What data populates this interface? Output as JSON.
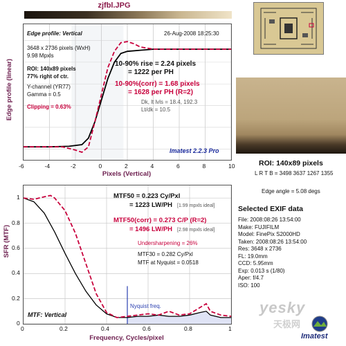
{
  "title": "zjfbl.JPG",
  "edge_panel": {
    "heading": "Edge profile: Vertical",
    "date": "26-Aug-2008 18:25:30",
    "dims": "3648 x 2736 pixels (WxH)",
    "mpxls": "9.98 Mpxls",
    "roi": "ROI: 140x89 pixels",
    "roi_pos": "77% right of ctr.",
    "channel": "Y-channel (YR77)",
    "gamma": "Gamma = 0.5",
    "clipping": "Clipping =  0.63%",
    "rise1": "10-90% rise = 2.24 pixels",
    "rise2": "= 1222 per PH",
    "corr1": "10-90%(corr) = 1.68 pixels",
    "corr2": "= 1628 per PH  (R=2)",
    "dk": "Dk, lt lvls = 18.4, 192.3",
    "ltdk": "Lt/dk = 10.5",
    "brand": "Imatest 2.2.3 Pro"
  },
  "mtf_panel": {
    "heading": "MTF: Vertical",
    "mtf50": "MTF50 = 0.223 Cy/Pxl",
    "mtf50b": "= 1223 LW/PH",
    "ideal1": "[1.99 mpxls ideal]",
    "corr1": "MTF50(corr) = 0.273 C/P  (R=2)",
    "corr2": "= 1496 LW/PH",
    "ideal2": "[2.98 mpxls ideal]",
    "under": "Undersharpening = 26%",
    "mtf30": "MTF30 = 0.282 Cy/Pxl",
    "nyq": "MTF at Nyquist = 0.0518",
    "nyq_label": "Nyquist freq."
  },
  "roi_info": {
    "title": "ROI: 140x89 pixels",
    "lrtb": "L R T B = 3498 3637  1267 1355",
    "edge": "Edge angle = 5.08 degs"
  },
  "exif": {
    "title": "Selected EXIF data",
    "rows": [
      "File:   2008:08:26 13:54:00",
      "Make:  FUJIFILM",
      "Model:  FinePix S2000HD",
      "Taken:  2008:08:26 13:54:00",
      "Res:   3648 x 2736",
      "FL:   19.0mm",
      "CCD:   5.95mm",
      "Exp:   0.013 s  (1/80)",
      "Aper:   f/4.7",
      "ISO:   100"
    ]
  },
  "watermark": {
    "yesky": "yesky",
    "cn": "天极网",
    "imatest": "Imatest"
  },
  "chart_data": [
    {
      "type": "line",
      "title": "Edge profile: Vertical",
      "xlabel": "Pixels (Vertical)",
      "ylabel": "Edge profile (linear)",
      "xlim": [
        -6,
        10
      ],
      "xticks": [
        -6,
        -4,
        -2,
        0,
        2,
        4,
        6,
        8,
        10
      ],
      "grid": true,
      "series": [
        {
          "color": "#000000",
          "x": [
            -6,
            -4,
            -2.5,
            -1.5,
            -1,
            -0.5,
            0,
            0.5,
            1,
            1.5,
            2,
            3,
            4,
            6,
            8,
            10
          ],
          "y": [
            0.02,
            0.02,
            0.025,
            0.04,
            0.1,
            0.25,
            0.45,
            0.65,
            0.8,
            0.88,
            0.9,
            0.91,
            0.92,
            0.92,
            0.92,
            0.92
          ]
        },
        {
          "color": "#c8003c",
          "dash": true,
          "x": [
            -6,
            -3,
            -2,
            -1.5,
            -1,
            -0.5,
            0,
            0.5,
            1,
            1.5,
            2,
            2.5,
            3,
            4,
            5,
            6,
            8,
            10
          ],
          "y": [
            0.02,
            0.02,
            -0.01,
            -0.03,
            0.02,
            0.25,
            0.5,
            0.75,
            0.9,
            0.98,
            0.99,
            0.97,
            0.94,
            0.92,
            0.92,
            0.92,
            0.92,
            0.92
          ]
        }
      ]
    },
    {
      "type": "line",
      "title": "MTF: Vertical",
      "xlabel": "Frequency, Cycles/pixel",
      "ylabel": "SFR (MTF)",
      "xlim": [
        0,
        1
      ],
      "ylim": [
        0,
        1.1
      ],
      "xticks": [
        0,
        0.2,
        0.4,
        0.6,
        0.8,
        1
      ],
      "yticks": [
        0,
        0.2,
        0.4,
        0.6,
        0.8,
        1
      ],
      "nyquist": 0.5,
      "series": [
        {
          "color": "#000000",
          "x": [
            0,
            0.05,
            0.1,
            0.15,
            0.2,
            0.25,
            0.3,
            0.35,
            0.4,
            0.45,
            0.5,
            0.55,
            0.6,
            0.65,
            0.7,
            0.75,
            0.8,
            0.85,
            0.88,
            0.9,
            0.95,
            1.0
          ],
          "y": [
            1.0,
            0.97,
            0.88,
            0.73,
            0.56,
            0.4,
            0.26,
            0.15,
            0.08,
            0.05,
            0.05,
            0.06,
            0.06,
            0.07,
            0.06,
            0.06,
            0.07,
            0.09,
            0.1,
            0.07,
            0.05,
            0.05
          ]
        },
        {
          "color": "#c8003c",
          "dash": true,
          "x": [
            0,
            0.05,
            0.1,
            0.13,
            0.15,
            0.2,
            0.25,
            0.3,
            0.35,
            0.4,
            0.45,
            0.5,
            0.55,
            0.6,
            0.65,
            0.7,
            0.75,
            0.8,
            0.85,
            0.88,
            0.9,
            0.95,
            1.0
          ],
          "y": [
            1.0,
            0.99,
            1.01,
            1.02,
            1.0,
            0.9,
            0.72,
            0.48,
            0.24,
            0.09,
            0.05,
            0.06,
            0.07,
            0.08,
            0.07,
            0.1,
            0.07,
            0.08,
            0.13,
            0.16,
            0.1,
            0.07,
            0.06
          ]
        }
      ]
    }
  ]
}
